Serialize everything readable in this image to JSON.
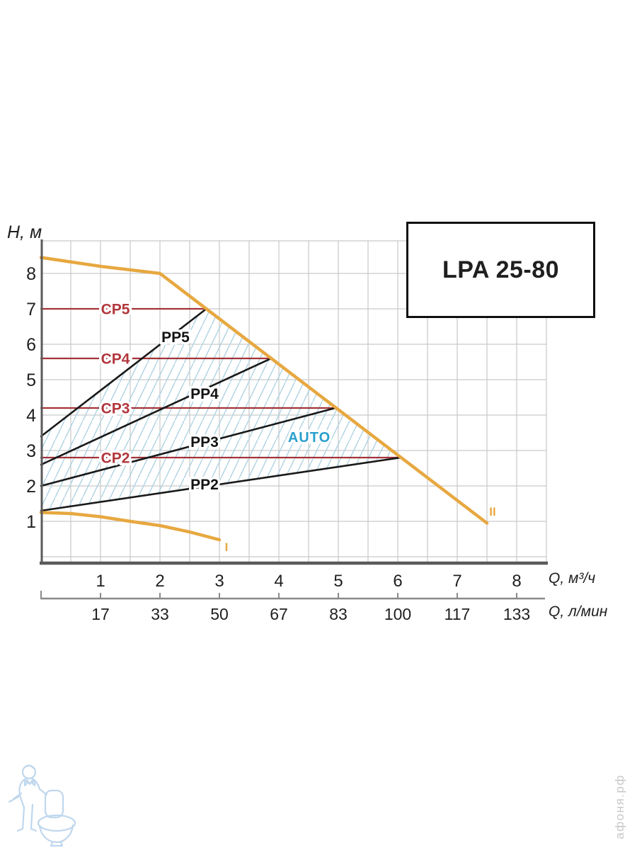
{
  "title_box": {
    "label": "LPA 25-80"
  },
  "watermark": {
    "site": "афоня.рф"
  },
  "colors": {
    "orange_curve": "#e7a840",
    "cp_line": "#a23439",
    "cp_label": "#b2373d",
    "pp_line": "#191919",
    "auto_label": "#2a9fcc",
    "hatch": "#aed3e3",
    "grid": "#c9c9c9"
  },
  "chart_data": {
    "type": "line",
    "title": "LPA 25-80",
    "grid": true,
    "legend_position": "none",
    "x_axis": {
      "label": "Q, м³/ч",
      "ticks": [
        1,
        2,
        3,
        4,
        5,
        6,
        7,
        8
      ],
      "range": [
        0,
        8.5
      ]
    },
    "x_axis_secondary": {
      "label": "Q, л/мин",
      "ticks": [
        17,
        33,
        50,
        67,
        83,
        100,
        117,
        133
      ]
    },
    "y_axis": {
      "label": "H, м",
      "ticks": [
        1,
        2,
        3,
        4,
        5,
        6,
        7,
        8
      ],
      "range": [
        0,
        8.9
      ]
    },
    "auto_zone_label": "AUTO",
    "hatch_region": [
      [
        0,
        3.4
      ],
      [
        2.78,
        7.0
      ],
      [
        6.05,
        2.8
      ],
      [
        0,
        1.3
      ]
    ],
    "series": [
      {
        "id": "cp5",
        "label": "CP5",
        "kind": "constant-pressure",
        "color": "#a23439",
        "points": [
          [
            0,
            7.0
          ],
          [
            2.78,
            7.0
          ]
        ]
      },
      {
        "id": "cp4",
        "label": "CP4",
        "kind": "constant-pressure",
        "color": "#a23439",
        "points": [
          [
            0,
            5.6
          ],
          [
            3.87,
            5.6
          ]
        ]
      },
      {
        "id": "cp3",
        "label": "CP3",
        "kind": "constant-pressure",
        "color": "#a23439",
        "points": [
          [
            0,
            4.2
          ],
          [
            4.95,
            4.2
          ]
        ]
      },
      {
        "id": "cp2",
        "label": "CP2",
        "kind": "constant-pressure",
        "color": "#a23439",
        "points": [
          [
            0,
            2.8
          ],
          [
            6.05,
            2.8
          ]
        ]
      },
      {
        "id": "pp5",
        "label": "PP5",
        "kind": "proportional-pressure",
        "color": "#191919",
        "points": [
          [
            0,
            3.4
          ],
          [
            2.78,
            7.0
          ]
        ]
      },
      {
        "id": "pp4",
        "label": "PP4",
        "kind": "proportional-pressure",
        "color": "#191919",
        "points": [
          [
            0,
            2.6
          ],
          [
            3.87,
            5.6
          ]
        ]
      },
      {
        "id": "pp3",
        "label": "PP3",
        "kind": "proportional-pressure",
        "color": "#191919",
        "points": [
          [
            0,
            2.0
          ],
          [
            4.95,
            4.2
          ]
        ]
      },
      {
        "id": "pp2",
        "label": "PP2",
        "kind": "proportional-pressure",
        "color": "#191919",
        "points": [
          [
            0,
            1.3
          ],
          [
            6.05,
            2.8
          ]
        ]
      },
      {
        "id": "speed-2",
        "label": "II",
        "kind": "max-speed",
        "color": "#e7a840",
        "points": [
          [
            0,
            8.45
          ],
          [
            1,
            8.2
          ],
          [
            2,
            8.0
          ],
          [
            7.5,
            0.95
          ]
        ]
      },
      {
        "id": "speed-1",
        "label": "I",
        "kind": "min-speed",
        "color": "#e7a840",
        "points": [
          [
            0,
            1.25
          ],
          [
            0.5,
            1.22
          ],
          [
            1,
            1.13
          ],
          [
            1.5,
            1.0
          ],
          [
            2,
            0.88
          ],
          [
            2.5,
            0.7
          ],
          [
            3,
            0.48
          ]
        ]
      }
    ]
  }
}
